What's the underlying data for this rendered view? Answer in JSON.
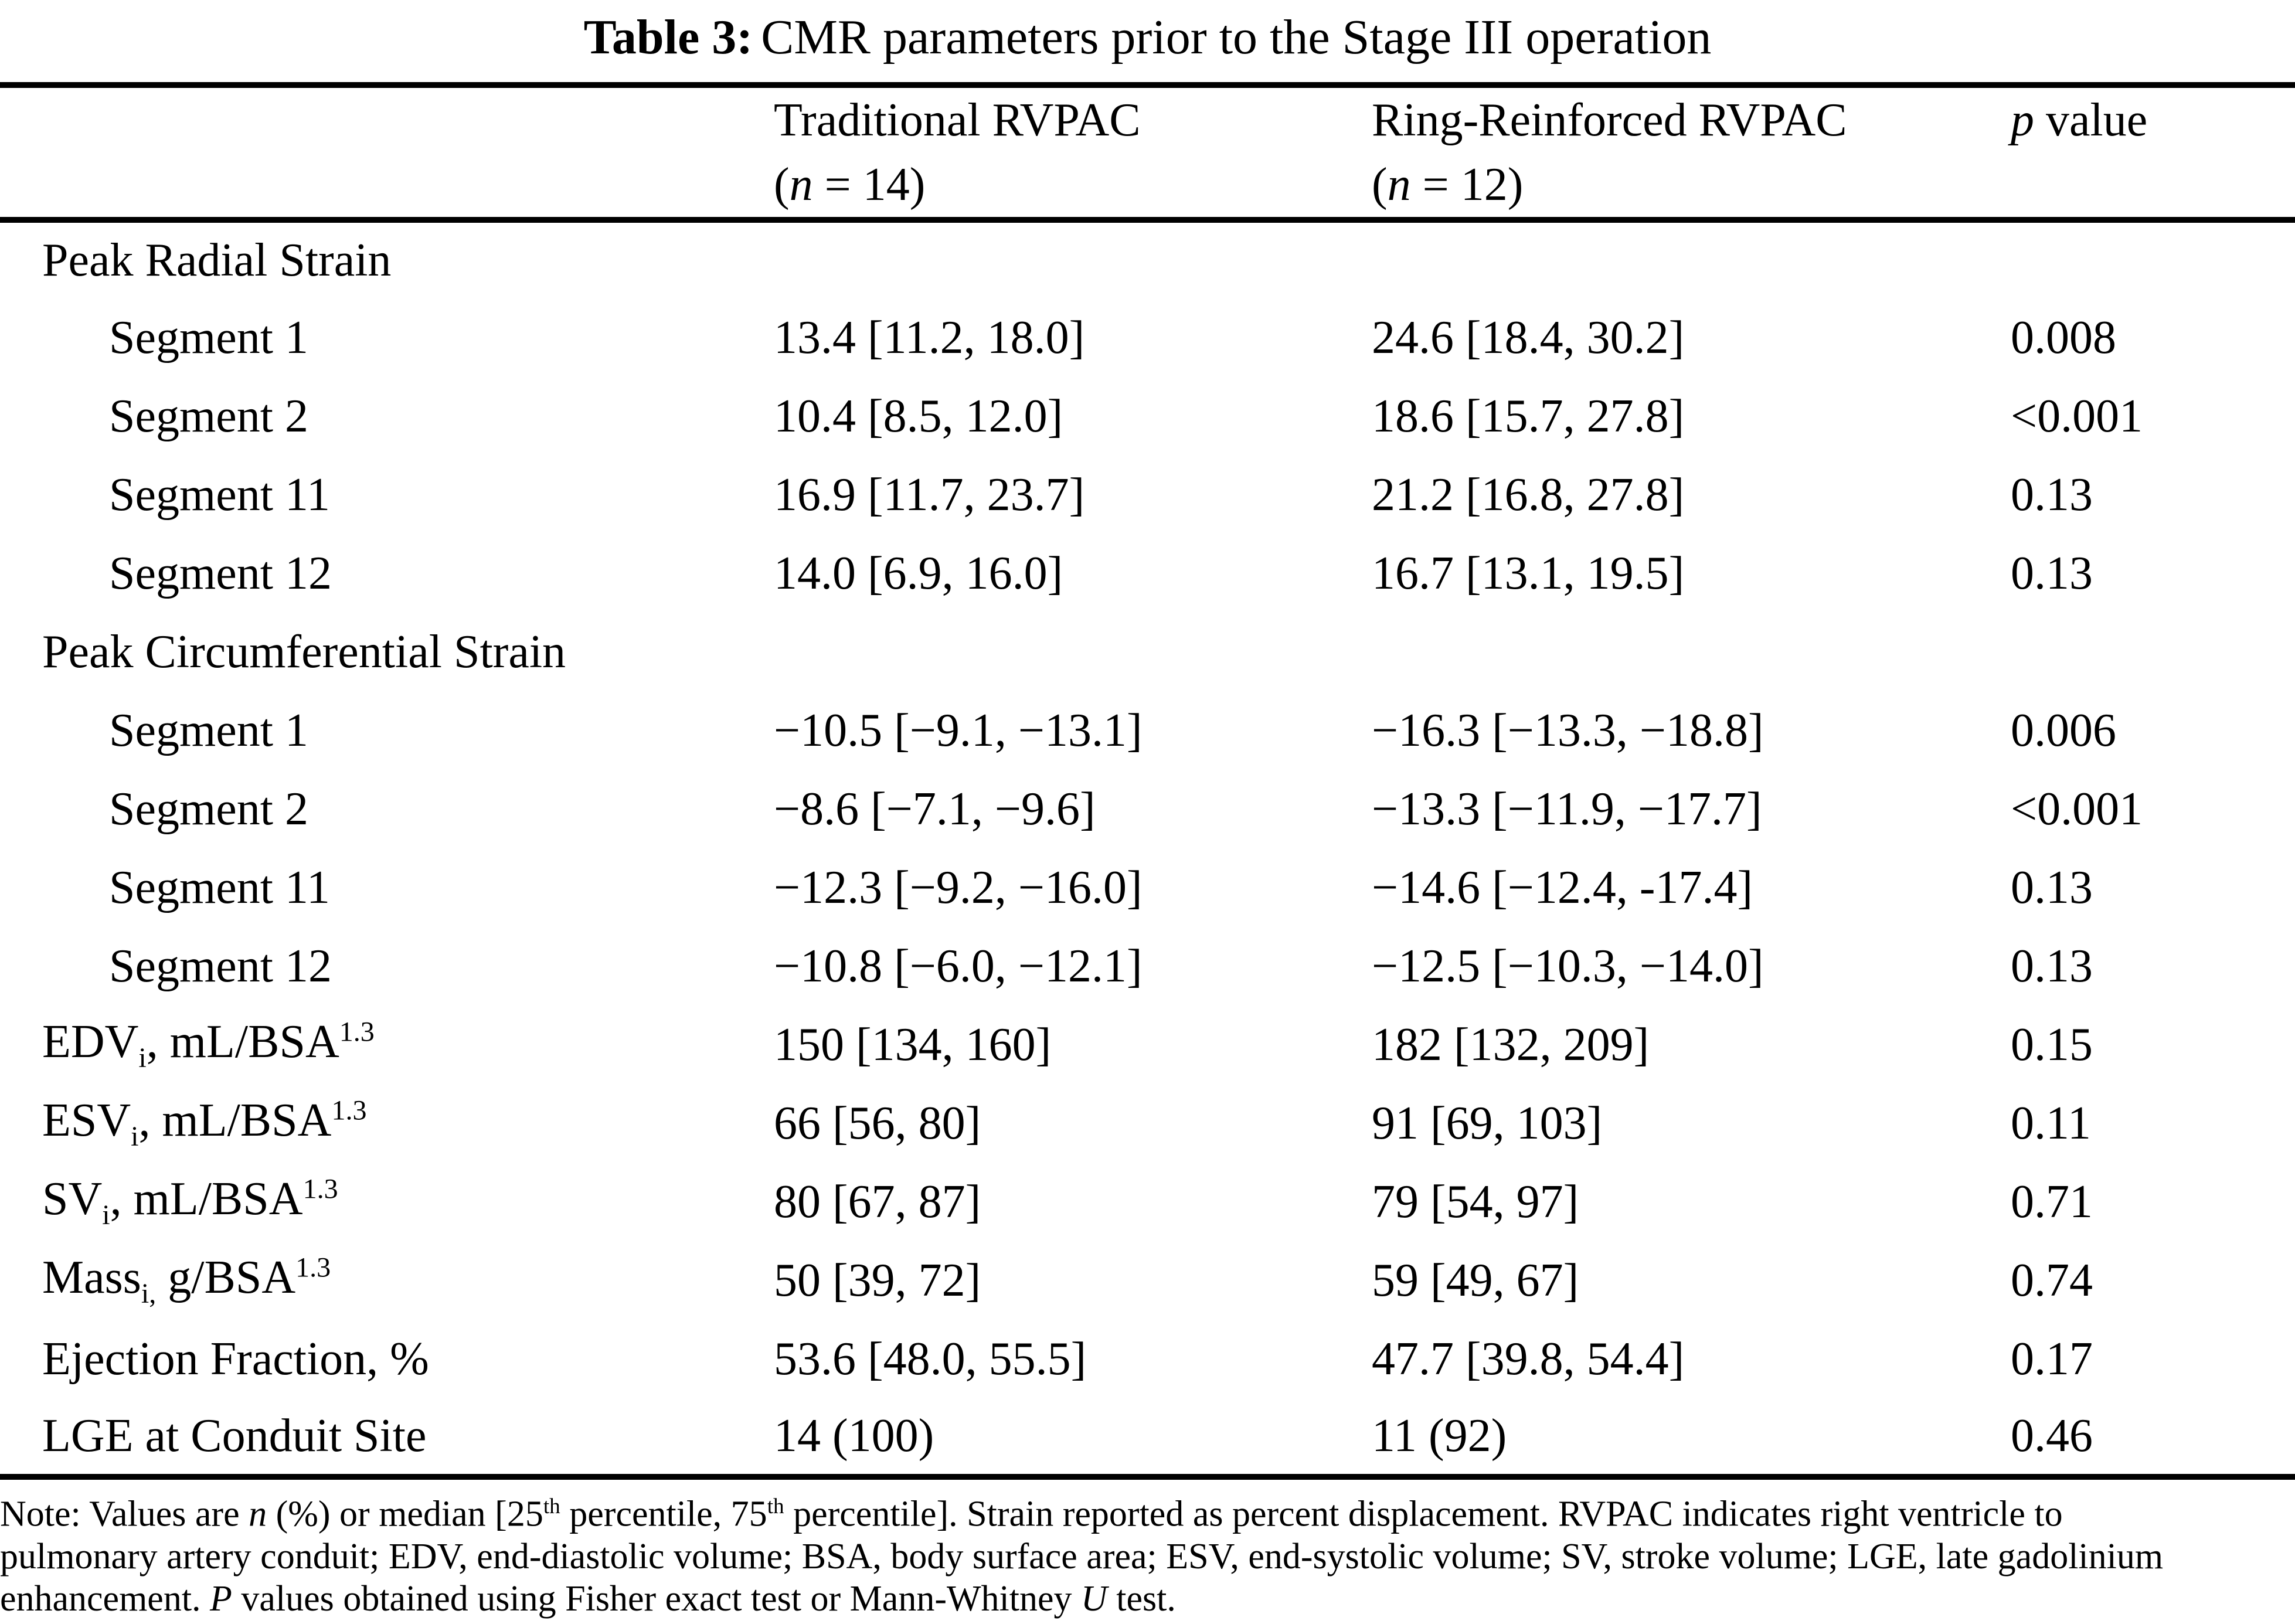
{
  "title": {
    "bold": "Table 3:",
    "rest": "CMR parameters prior to the Stage III operation"
  },
  "header": {
    "col2": {
      "line1": "Traditional RVPAC",
      "line2_pre": "(",
      "line2_it": "n",
      "line2_post": " = 14)"
    },
    "col3": {
      "line1": "Ring-Reinforced RVPAC",
      "line2_pre": "(",
      "line2_it": "n",
      "line2_post": " = 12)"
    },
    "p": {
      "it": "p",
      "rest": " value"
    }
  },
  "rows": [
    {
      "label": {
        "pre": "Peak Radial Strain"
      },
      "c1": "",
      "c2": "",
      "p": ""
    },
    {
      "label": {
        "pre": "Segment 1"
      },
      "c1": "13.4 [11.2, 18.0]",
      "c2": "24.6 [18.4, 30.2]",
      "p": "0.008"
    },
    {
      "label": {
        "pre": "Segment 2"
      },
      "c1": "10.4 [8.5, 12.0]",
      "c2": "18.6 [15.7, 27.8]",
      "p": "<0.001"
    },
    {
      "label": {
        "pre": "Segment 11"
      },
      "c1": "16.9 [11.7, 23.7]",
      "c2": "21.2 [16.8, 27.8]",
      "p": "0.13"
    },
    {
      "label": {
        "pre": "Segment 12"
      },
      "c1": "14.0 [6.9, 16.0]",
      "c2": "16.7 [13.1, 19.5]",
      "p": "0.13"
    },
    {
      "label": {
        "pre": "Peak Circumferential Strain"
      },
      "c1": "",
      "c2": "",
      "p": ""
    },
    {
      "label": {
        "pre": "Segment 1"
      },
      "c1": "−10.5 [−9.1, −13.1]",
      "c2": "−16.3 [−13.3, −18.8]",
      "p": "0.006"
    },
    {
      "label": {
        "pre": "Segment 2"
      },
      "c1": "−8.6 [−7.1, −9.6]",
      "c2": "−13.3 [−11.9, −17.7]",
      "p": "<0.001"
    },
    {
      "label": {
        "pre": "Segment 11"
      },
      "c1": "−12.3 [−9.2, −16.0]",
      "c2": "−14.6 [−12.4, -17.4]",
      "p": "0.13"
    },
    {
      "label": {
        "pre": "Segment 12"
      },
      "c1": "−10.8 [−6.0, −12.1]",
      "c2": "−12.5 [−10.3, −14.0]",
      "p": "0.13"
    },
    {
      "label": {
        "pre": "EDV",
        "sub": "i",
        "mid": ", mL/BSA",
        "sup": "1.3"
      },
      "c1": "150 [134, 160]",
      "c2": "182 [132, 209]",
      "p": "0.15"
    },
    {
      "label": {
        "pre": "ESV",
        "sub": "i",
        "mid": ", mL/BSA",
        "sup": "1.3"
      },
      "c1": "66 [56, 80]",
      "c2": "91 [69, 103]",
      "p": "0.11"
    },
    {
      "label": {
        "pre": "SV",
        "sub": "i",
        "mid": ", mL/BSA",
        "sup": "1.3"
      },
      "c1": "80 [67, 87]",
      "c2": "79 [54, 97]",
      "p": "0.71"
    },
    {
      "label": {
        "pre": "Mass",
        "sub": "i,",
        "mid": " g/BSA",
        "sup": "1.3"
      },
      "c1": "50 [39, 72]",
      "c2": "59 [49, 67]",
      "p": "0.74"
    },
    {
      "label": {
        "pre": "Ejection Fraction, %"
      },
      "c1": "53.6 [48.0, 55.5]",
      "c2": "47.7 [39.8, 54.4]",
      "p": "0.17"
    },
    {
      "label": {
        "pre": "LGE at Conduit Site"
      },
      "c1": "14 (100)",
      "c2": "11 (92)",
      "p": "0.46"
    }
  ],
  "footnote": {
    "line1": [
      {
        "t": "Note: Values are "
      },
      {
        "t": "n",
        "i": true
      },
      {
        "t": " (%) or median [25"
      },
      {
        "t": "th",
        "sup": true
      },
      {
        "t": " percentile, 75"
      },
      {
        "t": "th",
        "sup": true
      },
      {
        "t": " percentile]. Strain reported as percent displacement. RVPAC indicates right ventricle to"
      }
    ],
    "line2": [
      {
        "t": "pulmonary artery conduit; EDV, end-diastolic volume; BSA, body surface area; ESV, end-systolic volume; SV, stroke volume; LGE, late gadolinium"
      }
    ],
    "line3": [
      {
        "t": "enhancement. "
      },
      {
        "t": "P",
        "i": true
      },
      {
        "t": " values obtained using Fisher exact test or Mann-Whitney "
      },
      {
        "t": "U",
        "i": true
      },
      {
        "t": " test."
      }
    ]
  }
}
